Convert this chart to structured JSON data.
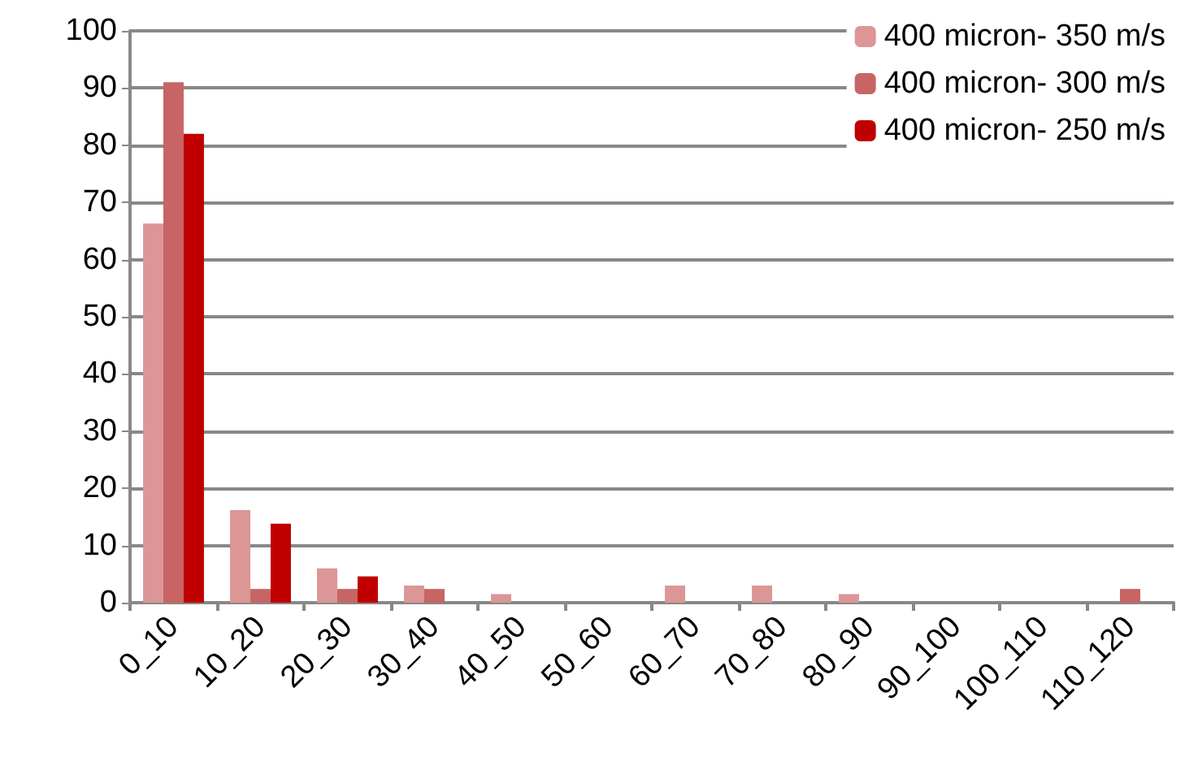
{
  "chart_data": {
    "type": "bar",
    "categories": [
      "0_10",
      "10_20",
      "20_30",
      "30_40",
      "40_50",
      "50_60",
      "60_70",
      "70_80",
      "80_90",
      "90_100",
      "100_110",
      "110_120"
    ],
    "series": [
      {
        "name": "400 micron- 350 m/s",
        "color": "#dc9696",
        "values": [
          66.3,
          16.2,
          6,
          3,
          1.5,
          0,
          3,
          3,
          1.5,
          0,
          0,
          0
        ]
      },
      {
        "name": "400 micron- 300 m/s",
        "color": "#c86464",
        "values": [
          91,
          2.4,
          2.4,
          2.4,
          0,
          0,
          0,
          0,
          0,
          0,
          0,
          2.4
        ]
      },
      {
        "name": "400 micron- 250 m/s",
        "color": "#c00000",
        "values": [
          82,
          13.8,
          4.6,
          0,
          0,
          0,
          0,
          0,
          0,
          0,
          0,
          0
        ]
      }
    ],
    "ylim": [
      0,
      100
    ],
    "yticks": [
      0,
      10,
      20,
      30,
      40,
      50,
      60,
      70,
      80,
      90,
      100
    ],
    "grid": "y",
    "legend": "top right"
  }
}
